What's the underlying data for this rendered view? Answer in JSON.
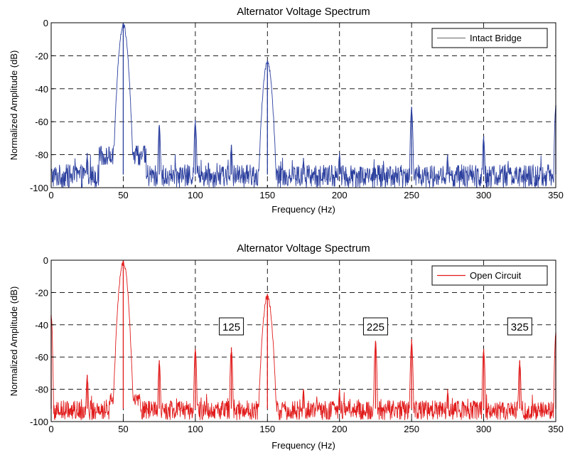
{
  "chart_data": [
    {
      "type": "line",
      "title": "Alternator Voltage Spectrum",
      "xlabel": "Frequency (Hz)",
      "ylabel": "Normalized Amplitude (dB)",
      "xlim": [
        0,
        350
      ],
      "ylim": [
        -100,
        0
      ],
      "xticks": [
        "0",
        "50",
        "100",
        "150",
        "200",
        "250",
        "300",
        "350"
      ],
      "yticks": [
        "0",
        "-20",
        "-40",
        "-60",
        "-80",
        "-100"
      ],
      "grid": true,
      "legend_position": "top-right",
      "series": [
        {
          "name": "Intact Bridge",
          "color": "#2b3f9e",
          "legend_line_color": "#7f7f7f",
          "noise_floor": -93,
          "noise_spread": 7,
          "skirt": {
            "from": 33,
            "to": 66,
            "level": -83,
            "spread": 12
          },
          "peaks": [
            {
              "x": 25,
              "y": -79
            },
            {
              "x": 50,
              "y": 0
            },
            {
              "x": 75,
              "y": -62
            },
            {
              "x": 100,
              "y": -59
            },
            {
              "x": 125,
              "y": -74
            },
            {
              "x": 150,
              "y": -23
            },
            {
              "x": 175,
              "y": -82
            },
            {
              "x": 200,
              "y": -79
            },
            {
              "x": 250,
              "y": -51
            },
            {
              "x": 275,
              "y": -80
            },
            {
              "x": 300,
              "y": -69
            },
            {
              "x": 350,
              "y": -50
            }
          ]
        },
        {
          "name": "Open Circuit",
          "color": "#e11b1b",
          "legend_line_color": "#e11b1b",
          "noise_floor": -93,
          "noise_spread": 6,
          "skirt": {
            "from": 40,
            "to": 62,
            "level": -88,
            "spread": 8
          },
          "peaks": [
            {
              "x": 0,
              "y": -34
            },
            {
              "x": 25,
              "y": -71
            },
            {
              "x": 50,
              "y": 0
            },
            {
              "x": 75,
              "y": -62
            },
            {
              "x": 100,
              "y": -55
            },
            {
              "x": 125,
              "y": -54
            },
            {
              "x": 150,
              "y": -21
            },
            {
              "x": 175,
              "y": -80
            },
            {
              "x": 200,
              "y": -80
            },
            {
              "x": 225,
              "y": -50
            },
            {
              "x": 250,
              "y": -49
            },
            {
              "x": 275,
              "y": -80
            },
            {
              "x": 300,
              "y": -55
            },
            {
              "x": 325,
              "y": -62
            },
            {
              "x": 350,
              "y": -45
            }
          ]
        }
      ],
      "annotations": [
        {
          "text": "125",
          "panel": 1,
          "x": 125,
          "y": -41
        },
        {
          "text": "225",
          "panel": 1,
          "x": 225,
          "y": -41
        },
        {
          "text": "325",
          "panel": 1,
          "x": 325,
          "y": -41
        }
      ]
    }
  ]
}
